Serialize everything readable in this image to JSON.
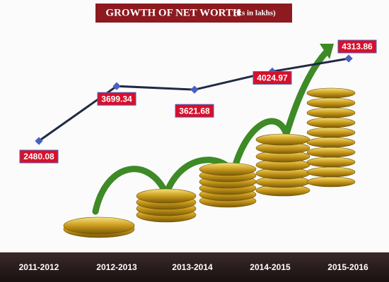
{
  "chart_data": {
    "type": "line",
    "title": "GROWTH OF NET WORTH",
    "subtitle": "(Rs in lakhs)",
    "categories": [
      "2011-2012",
      "2012-2013",
      "2013-2014",
      "2014-2015",
      "2015-2016"
    ],
    "values": [
      2480.08,
      3699.34,
      3621.68,
      4024.97,
      4313.86
    ],
    "color": "#1f2a44",
    "marker_color": "#4a5fc0",
    "label_color": "#d8102a"
  }
}
